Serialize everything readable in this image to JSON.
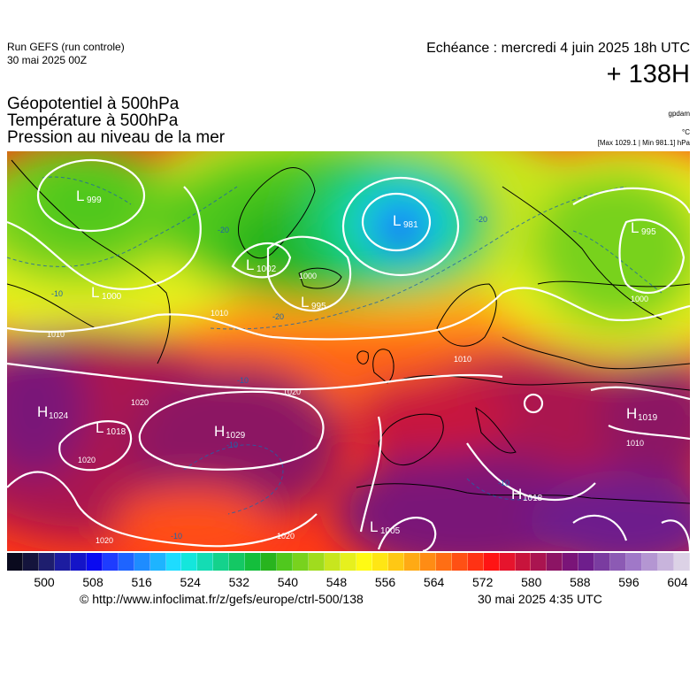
{
  "header": {
    "run_line1": "Run GEFS (run controle)",
    "run_line2": "30 mai 2025 00Z",
    "echeance": "Echéance : mercredi 4 juin 2025 18h UTC",
    "hour": "+ 138H",
    "title1": "Géopotentiel à 500hPa",
    "title2": "Température à 500hPa",
    "title3": "Pression au niveau de la mer",
    "unit_gpdam": "gpdam",
    "unit_celsius": "°C",
    "unit_pressure": "[Max 1029.1 | Min 981.1] hPa"
  },
  "map": {
    "pressure_centers": [
      {
        "type": "L",
        "value": "999"
      },
      {
        "type": "L",
        "value": "981"
      },
      {
        "type": "L",
        "value": "1002"
      },
      {
        "type": "L",
        "value": "995"
      },
      {
        "type": "L",
        "value": "995"
      },
      {
        "type": "L",
        "value": "1000"
      },
      {
        "type": "H",
        "value": "1024"
      },
      {
        "type": "L",
        "value": "1018"
      },
      {
        "type": "H",
        "value": "1029"
      },
      {
        "type": "H",
        "value": "1019"
      },
      {
        "type": "H",
        "value": "1018"
      },
      {
        "type": "L",
        "value": "1005"
      }
    ],
    "isobar_labels": [
      "1000",
      "1010",
      "1020",
      "1010",
      "1020",
      "1020",
      "1020",
      "1010",
      "1000",
      "1010",
      "1020"
    ],
    "isotherm_labels": [
      "-10",
      "-20",
      "-20",
      "-10",
      "-10",
      "-10",
      "-20",
      "-10"
    ]
  },
  "colorbar": {
    "colors": [
      "#0a0a1e",
      "#14143c",
      "#1e1e6e",
      "#1c1ca0",
      "#1414c8",
      "#0a0af0",
      "#1e3cff",
      "#1e64ff",
      "#1e8cff",
      "#1eb4ff",
      "#1edcff",
      "#14e6dc",
      "#14dcb4",
      "#14d28c",
      "#14c864",
      "#14be3c",
      "#28b41e",
      "#50c81e",
      "#78d21e",
      "#a0dc1e",
      "#c8e61e",
      "#e6f01e",
      "#fffa14",
      "#ffe614",
      "#ffc814",
      "#ffaa14",
      "#ff8c14",
      "#ff6e14",
      "#ff5014",
      "#ff3214",
      "#ff1414",
      "#e6142d",
      "#c8143c",
      "#aa1450",
      "#8c1464",
      "#7a1478",
      "#6e1e8c",
      "#7a3ca0",
      "#8c5ab4",
      "#a078c8",
      "#b496d2",
      "#c8b4dc",
      "#dcd2e6"
    ],
    "ticks": [
      "500",
      "508",
      "516",
      "524",
      "532",
      "540",
      "548",
      "556",
      "564",
      "572",
      "580",
      "588",
      "596",
      "604"
    ]
  },
  "footer": {
    "source": "© http://www.infoclimat.fr/z/gefs/europe/ctrl-500/138",
    "generated": "30 mai 2025  4:35 UTC"
  }
}
